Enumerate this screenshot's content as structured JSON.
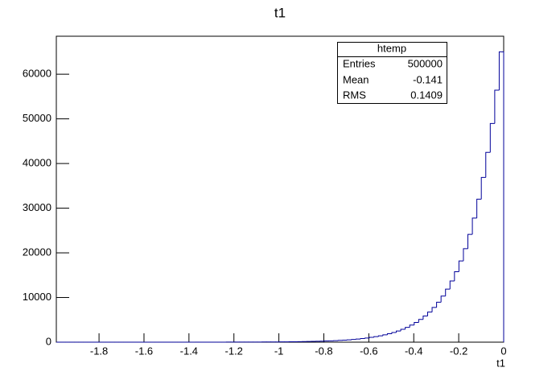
{
  "chart_data": {
    "type": "histogram",
    "title": "t1",
    "x_label": "t1",
    "color": "#000099",
    "xlim": [
      -1.99,
      0
    ],
    "ylim": [
      0,
      68500
    ],
    "xticks": [
      -1.8,
      -1.6,
      -1.4,
      -1.2,
      -1,
      -0.8,
      -0.6,
      -0.4,
      -0.2,
      0
    ],
    "yticks": [
      0,
      10000,
      20000,
      30000,
      40000,
      50000,
      60000
    ],
    "bins": [
      -1.99,
      -1.9701,
      -1.9502,
      -1.9303,
      -1.9104,
      -1.8905,
      -1.8706,
      -1.8507,
      -1.8308,
      -1.8109,
      -1.791,
      -1.7711,
      -1.7512,
      -1.7313,
      -1.7114,
      -1.6915,
      -1.6716,
      -1.6517,
      -1.6318,
      -1.6119,
      -1.592,
      -1.5721,
      -1.5522,
      -1.5323,
      -1.5124,
      -1.4925,
      -1.4726,
      -1.4527,
      -1.4328,
      -1.4129,
      -1.393,
      -1.3731,
      -1.3532,
      -1.3333,
      -1.3134,
      -1.2935,
      -1.2736,
      -1.2537,
      -1.2338,
      -1.2139,
      -1.194,
      -1.1741,
      -1.1542,
      -1.1343,
      -1.1144,
      -1.0945,
      -1.0746,
      -1.0547,
      -1.0348,
      -1.0149,
      -0.995,
      -0.9751,
      -0.9552,
      -0.9353,
      -0.9154,
      -0.8955,
      -0.8756,
      -0.8557,
      -0.8358,
      -0.8159,
      -0.796,
      -0.7761,
      -0.7562,
      -0.7363,
      -0.7164,
      -0.6965,
      -0.6766,
      -0.6567,
      -0.6368,
      -0.6169,
      -0.597,
      -0.5771,
      -0.5572,
      -0.5373,
      -0.5174,
      -0.4975,
      -0.4776,
      -0.4577,
      -0.4378,
      -0.4179,
      -0.398,
      -0.3781,
      -0.3582,
      -0.3383,
      -0.3184,
      -0.2985,
      -0.2786,
      -0.2587,
      -0.2388,
      -0.2189,
      -0.199,
      -0.1791,
      -0.1592,
      -0.1393,
      -0.1194,
      -0.0995,
      -0.0796,
      -0.0597,
      -0.0398,
      -0.0199,
      0
    ],
    "values": [
      0,
      0,
      0,
      0,
      0,
      0,
      0,
      0,
      0,
      0,
      0,
      0,
      0,
      0,
      0,
      0,
      0,
      0,
      1,
      1,
      1,
      1,
      1,
      1,
      2,
      2,
      2,
      2,
      3,
      3,
      4,
      4,
      5,
      6,
      7,
      8,
      9,
      10,
      12,
      13,
      15,
      18,
      20,
      23,
      27,
      31,
      36,
      41,
      48,
      55,
      63,
      73,
      84,
      97,
      111,
      128,
      148,
      170,
      196,
      226,
      260,
      299,
      345,
      397,
      458,
      528,
      608,
      700,
      807,
      929,
      1071,
      1234,
      1421,
      1637,
      1886,
      2173,
      2504,
      2885,
      3323,
      3829,
      4411,
      5082,
      5855,
      6746,
      7772,
      8954,
      10316,
      11885,
      13693,
      15776,
      18175,
      20940,
      24125,
      27794,
      32022,
      36893,
      42504,
      48969,
      56418,
      65000
    ],
    "stats_box": {
      "title": "htemp",
      "rows": [
        {
          "label": "Entries",
          "value": 500000
        },
        {
          "label": "Mean",
          "value": -0.141
        },
        {
          "label": "RMS",
          "value": 0.1409
        }
      ]
    }
  }
}
